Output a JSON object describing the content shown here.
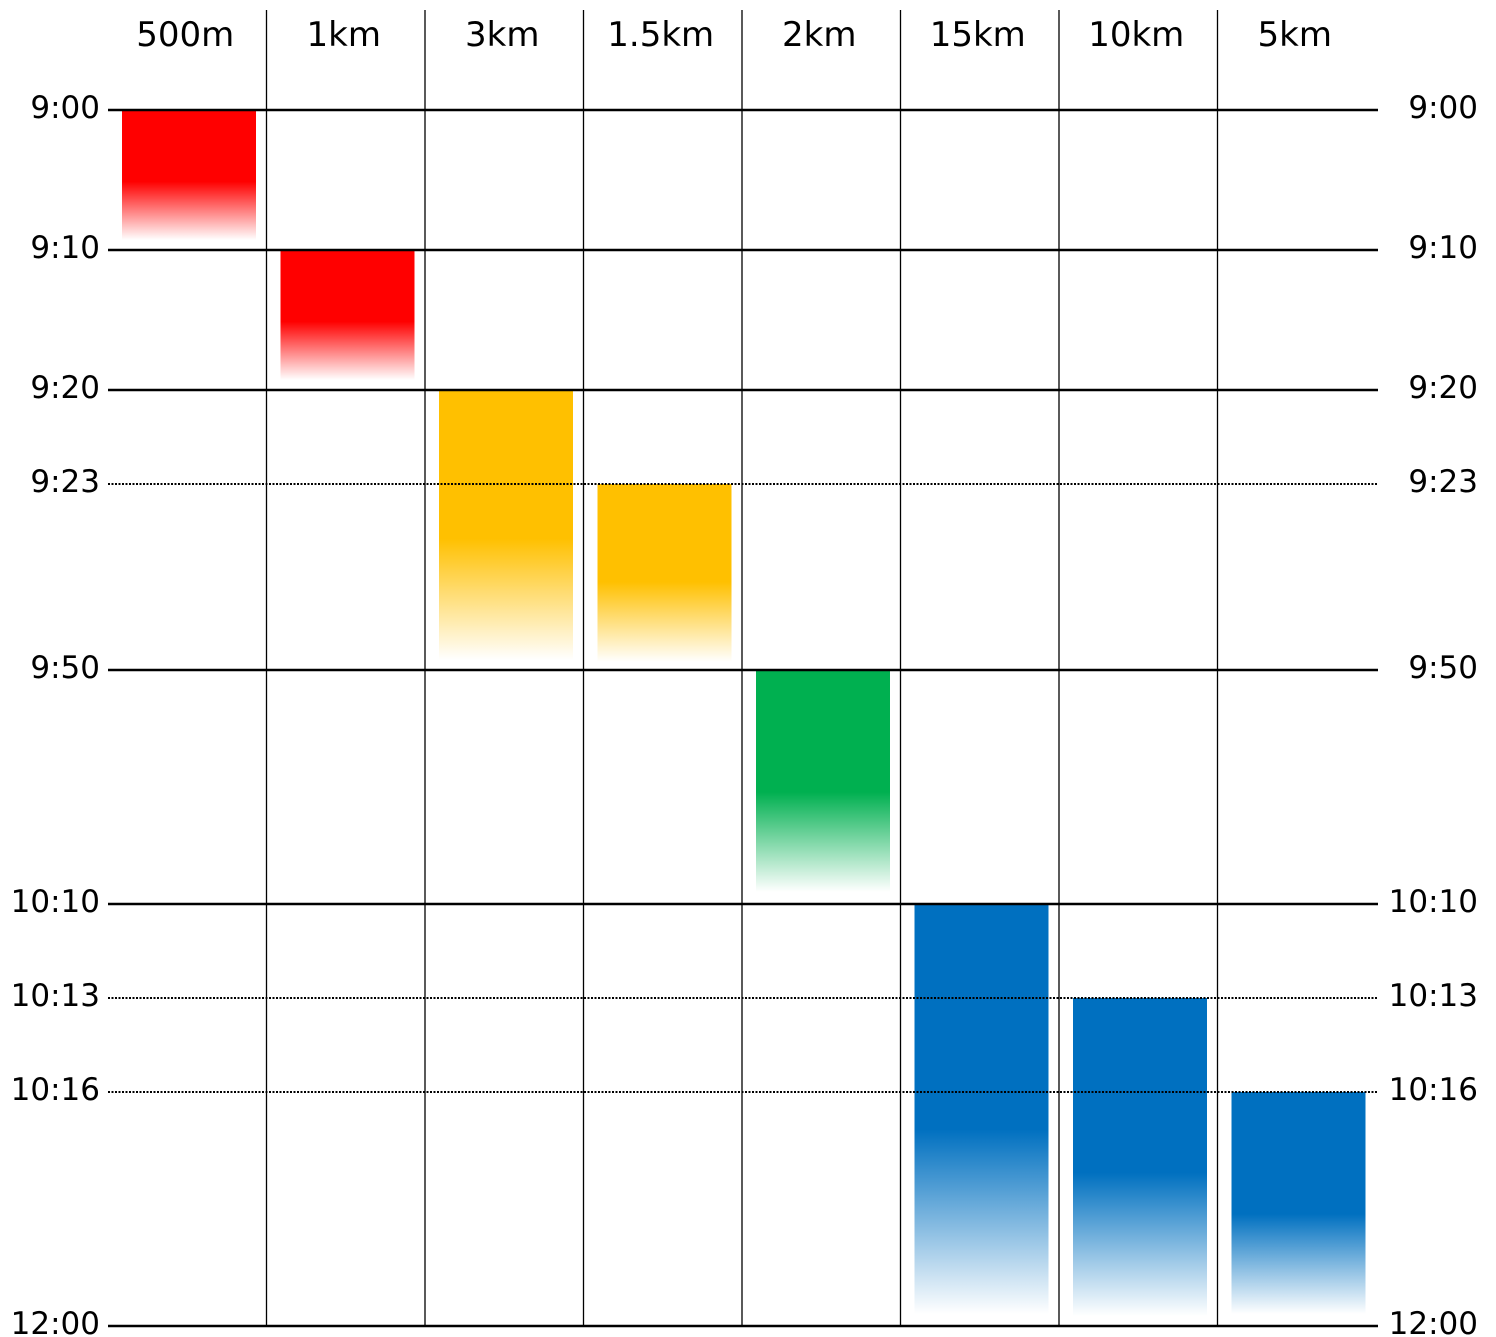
{
  "chart_data": {
    "type": "bar",
    "title": "",
    "xlabel": "",
    "ylabel": "",
    "categories": [
      "500m",
      "1km",
      "3km",
      "1.5km",
      "2km",
      "15km",
      "10km",
      "5km"
    ],
    "time_ticks": [
      {
        "label": "9:00",
        "minutes": 540,
        "style": "solid"
      },
      {
        "label": "9:10",
        "minutes": 550,
        "style": "solid"
      },
      {
        "label": "9:20",
        "minutes": 560,
        "style": "solid"
      },
      {
        "label": "9:23",
        "minutes": 563,
        "style": "dotted"
      },
      {
        "label": "9:50",
        "minutes": 590,
        "style": "solid"
      },
      {
        "label": "10:10",
        "minutes": 610,
        "style": "solid"
      },
      {
        "label": "10:13",
        "minutes": 613,
        "style": "dotted"
      },
      {
        "label": "10:16",
        "minutes": 616,
        "style": "dotted"
      },
      {
        "label": "12:00",
        "minutes": 720,
        "style": "solid"
      }
    ],
    "bars": [
      {
        "category": "500m",
        "start": "9:00",
        "color": "#FF0000"
      },
      {
        "category": "1km",
        "start": "9:10",
        "color": "#FF0000"
      },
      {
        "category": "3km",
        "start": "9:20",
        "color": "#FFC000"
      },
      {
        "category": "1.5km",
        "start": "9:23",
        "color": "#FFC000"
      },
      {
        "category": "2km",
        "start": "9:50",
        "color": "#00B050"
      },
      {
        "category": "15km",
        "start": "10:10",
        "color": "#0070C0"
      },
      {
        "category": "10km",
        "start": "10:13",
        "color": "#0070C0"
      },
      {
        "category": "5km",
        "start": "10:16",
        "color": "#0070C0"
      }
    ],
    "grid": true,
    "legend": "none"
  }
}
